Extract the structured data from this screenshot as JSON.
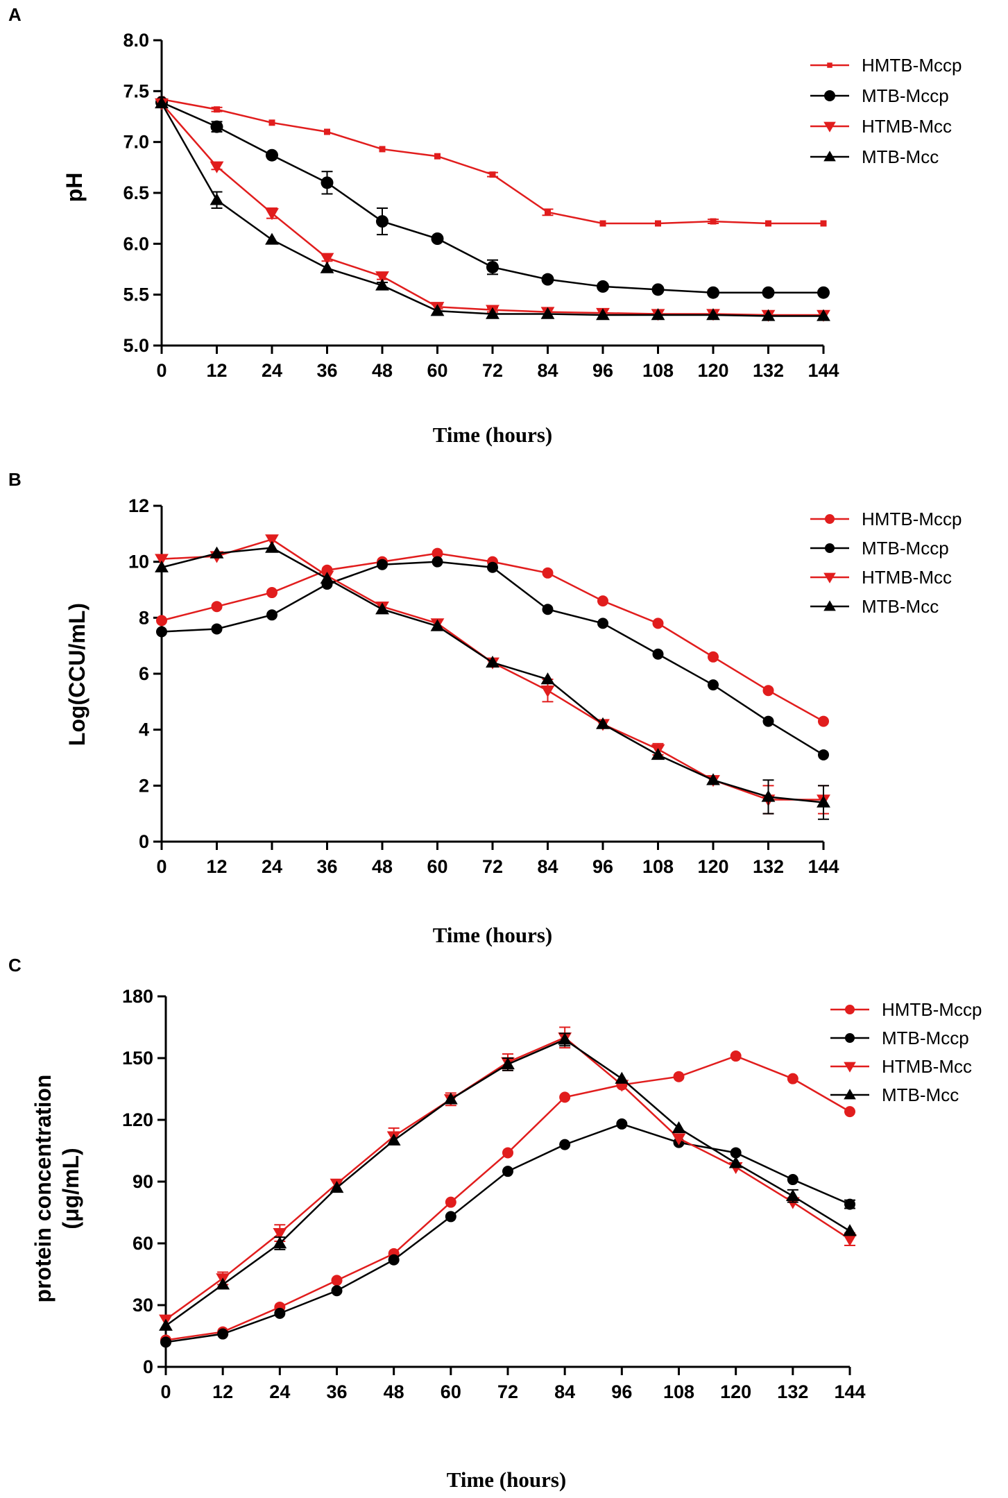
{
  "colors": {
    "red": "#e11d1d",
    "black": "#000000"
  },
  "chart_data": [
    {
      "panel": "A",
      "type": "line",
      "xlabel": "Time (hours)",
      "ylabel": "pH",
      "x": [
        0,
        12,
        24,
        36,
        48,
        60,
        72,
        84,
        96,
        108,
        120,
        132,
        144
      ],
      "xticks": [
        "0",
        "12",
        "24",
        "36",
        "48",
        "60",
        "72",
        "84",
        "96",
        "108",
        "120",
        "132",
        "144"
      ],
      "ylim": [
        5.0,
        8.0
      ],
      "yticks": [
        "5.0",
        "5.5",
        "6.0",
        "6.5",
        "7.0",
        "7.5",
        "8.0"
      ],
      "legend_position": "top-right",
      "series": [
        {
          "name": "HMTB-Mccp",
          "color": "#e11d1d",
          "marker": "small-square",
          "values": [
            7.42,
            7.32,
            7.19,
            7.1,
            6.93,
            6.86,
            6.68,
            6.31,
            6.2,
            6.2,
            6.22,
            6.2,
            6.2
          ],
          "errors": [
            0,
            0.02,
            0,
            0,
            0,
            0,
            0.02,
            0.03,
            0,
            0,
            0.02,
            0,
            0
          ]
        },
        {
          "name": "MTB-Mccp",
          "color": "#000000",
          "marker": "circle",
          "values": [
            7.39,
            7.15,
            6.87,
            6.6,
            6.22,
            6.05,
            5.77,
            5.65,
            5.58,
            5.55,
            5.52,
            5.52,
            5.52
          ],
          "errors": [
            0,
            0.05,
            0,
            0.11,
            0.13,
            0,
            0.07,
            0,
            0,
            0,
            0,
            0,
            0
          ]
        },
        {
          "name": "HTMB-Mcc",
          "color": "#e11d1d",
          "marker": "triangle-down",
          "values": [
            7.38,
            6.76,
            6.3,
            5.86,
            5.68,
            5.38,
            5.35,
            5.33,
            5.32,
            5.31,
            5.31,
            5.3,
            5.3
          ],
          "errors": [
            0,
            0.03,
            0.05,
            0.03,
            0.03,
            0.02,
            0.02,
            0,
            0,
            0,
            0,
            0,
            0
          ]
        },
        {
          "name": "MTB-Mcc",
          "color": "#000000",
          "marker": "triangle-up",
          "values": [
            7.38,
            6.43,
            6.04,
            5.76,
            5.59,
            5.34,
            5.31,
            5.31,
            5.3,
            5.3,
            5.3,
            5.29,
            5.29
          ],
          "errors": [
            0,
            0.08,
            0,
            0,
            0.03,
            0,
            0,
            0,
            0,
            0,
            0,
            0,
            0
          ]
        }
      ]
    },
    {
      "panel": "B",
      "type": "line",
      "xlabel": "Time (hours)",
      "ylabel": "Log(CCU/mL)",
      "x": [
        0,
        12,
        24,
        36,
        48,
        60,
        72,
        84,
        96,
        108,
        120,
        132,
        144
      ],
      "xticks": [
        "0",
        "12",
        "24",
        "36",
        "48",
        "60",
        "72",
        "84",
        "96",
        "108",
        "120",
        "132",
        "144"
      ],
      "ylim": [
        0,
        12
      ],
      "yticks": [
        "0",
        "2",
        "4",
        "6",
        "8",
        "10",
        "12"
      ],
      "legend_position": "top-right",
      "series": [
        {
          "name": "HMTB-Mccp",
          "color": "#e11d1d",
          "marker": "circle",
          "values": [
            7.9,
            8.4,
            8.9,
            9.7,
            10.0,
            10.3,
            10.0,
            9.6,
            8.6,
            7.8,
            6.6,
            5.4,
            4.3
          ],
          "errors": [
            0,
            0,
            0,
            0,
            0,
            0,
            0,
            0,
            0,
            0,
            0,
            0,
            0
          ]
        },
        {
          "name": "MTB-Mccp",
          "color": "#000000",
          "marker": "circle",
          "values": [
            7.5,
            7.6,
            8.1,
            9.2,
            9.9,
            10.0,
            9.8,
            8.3,
            7.8,
            6.7,
            5.6,
            4.3,
            3.1
          ],
          "errors": [
            0,
            0,
            0,
            0,
            0,
            0,
            0,
            0,
            0,
            0,
            0,
            0,
            0
          ]
        },
        {
          "name": "HTMB-Mcc",
          "color": "#e11d1d",
          "marker": "triangle-down",
          "values": [
            10.1,
            10.2,
            10.8,
            9.5,
            8.4,
            7.8,
            6.4,
            5.4,
            4.2,
            3.3,
            2.2,
            1.5,
            1.5
          ],
          "errors": [
            0,
            0,
            0,
            0,
            0,
            0,
            0,
            0.4,
            0,
            0.2,
            0,
            0.5,
            0.5
          ]
        },
        {
          "name": "MTB-Mcc",
          "color": "#000000",
          "marker": "triangle-up",
          "values": [
            9.8,
            10.3,
            10.5,
            9.4,
            8.3,
            7.7,
            6.4,
            5.8,
            4.2,
            3.1,
            2.2,
            1.6,
            1.4
          ],
          "errors": [
            0,
            0,
            0,
            0,
            0,
            0,
            0,
            0,
            0,
            0,
            0,
            0.6,
            0.6
          ]
        }
      ]
    },
    {
      "panel": "C",
      "type": "line",
      "xlabel": "Time (hours)",
      "ylabel": "protein concentration",
      "ylabel2": "(μg/mL)",
      "x": [
        0,
        12,
        24,
        36,
        48,
        60,
        72,
        84,
        96,
        108,
        120,
        132,
        144
      ],
      "xticks": [
        "0",
        "12",
        "24",
        "36",
        "48",
        "60",
        "72",
        "84",
        "96",
        "108",
        "120",
        "132",
        "144"
      ],
      "ylim": [
        0,
        180
      ],
      "yticks": [
        "0",
        "30",
        "60",
        "90",
        "120",
        "150",
        "180"
      ],
      "legend_position": "top-right",
      "series": [
        {
          "name": "HMTB-Mccp",
          "color": "#e11d1d",
          "marker": "circle",
          "values": [
            13,
            17,
            29,
            42,
            55,
            80,
            104,
            131,
            137,
            141,
            151,
            140,
            124
          ],
          "errors": [
            0,
            0,
            0,
            0,
            0,
            0,
            0,
            0,
            0,
            0,
            0,
            0,
            0
          ]
        },
        {
          "name": "MTB-Mccp",
          "color": "#000000",
          "marker": "circle",
          "values": [
            12,
            16,
            26,
            37,
            52,
            73,
            95,
            108,
            118,
            109,
            104,
            91,
            79
          ],
          "errors": [
            0,
            0,
            0,
            0,
            0,
            0,
            0,
            0,
            0,
            0,
            0,
            0,
            2
          ]
        },
        {
          "name": "HTMB-Mcc",
          "color": "#e11d1d",
          "marker": "triangle-down",
          "values": [
            23,
            43,
            65,
            89,
            112,
            130,
            148,
            160,
            137,
            111,
            97,
            80,
            62
          ],
          "errors": [
            0,
            3,
            4,
            0,
            4,
            3,
            4,
            5,
            0,
            0,
            0,
            0,
            3
          ]
        },
        {
          "name": "MTB-Mcc",
          "color": "#000000",
          "marker": "triangle-up",
          "values": [
            20,
            40,
            60,
            87,
            110,
            130,
            147,
            159,
            140,
            116,
            99,
            83,
            66
          ],
          "errors": [
            0,
            0,
            3,
            0,
            0,
            0,
            3,
            3,
            0,
            0,
            0,
            3,
            0
          ]
        }
      ]
    }
  ]
}
